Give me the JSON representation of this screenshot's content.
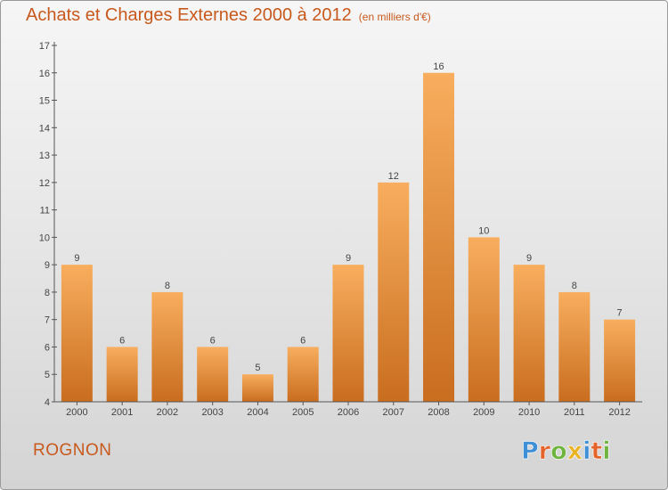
{
  "header": {
    "title": "Achats et Charges Externes 2000 à 2012",
    "subtitle": "(en milliers d'€)"
  },
  "commune": "ROGNON",
  "brand": {
    "logo_text": "Proxiti"
  },
  "colors": {
    "accent_text": "#c8591c",
    "bar_top": "#f8ae5e",
    "bar_bottom": "#c96d1f",
    "logo_letters": [
      "#3f8fd6",
      "#e4632b",
      "#6fb43f",
      "#e9b324",
      "#3f8fd6",
      "#e4632b",
      "#6fb43f"
    ]
  },
  "chart_data": {
    "type": "bar",
    "categories": [
      "2000",
      "2001",
      "2002",
      "2003",
      "2004",
      "2005",
      "2006",
      "2007",
      "2008",
      "2009",
      "2010",
      "2011",
      "2012"
    ],
    "values": [
      9,
      6,
      8,
      6,
      5,
      6,
      9,
      12,
      16,
      10,
      9,
      8,
      7
    ],
    "ylim": [
      4,
      17
    ],
    "yticks": [
      4,
      5,
      6,
      7,
      8,
      9,
      10,
      11,
      12,
      13,
      14,
      15,
      16,
      17
    ],
    "xlabel": "",
    "ylabel": "",
    "grid": false,
    "data_labels": true
  }
}
